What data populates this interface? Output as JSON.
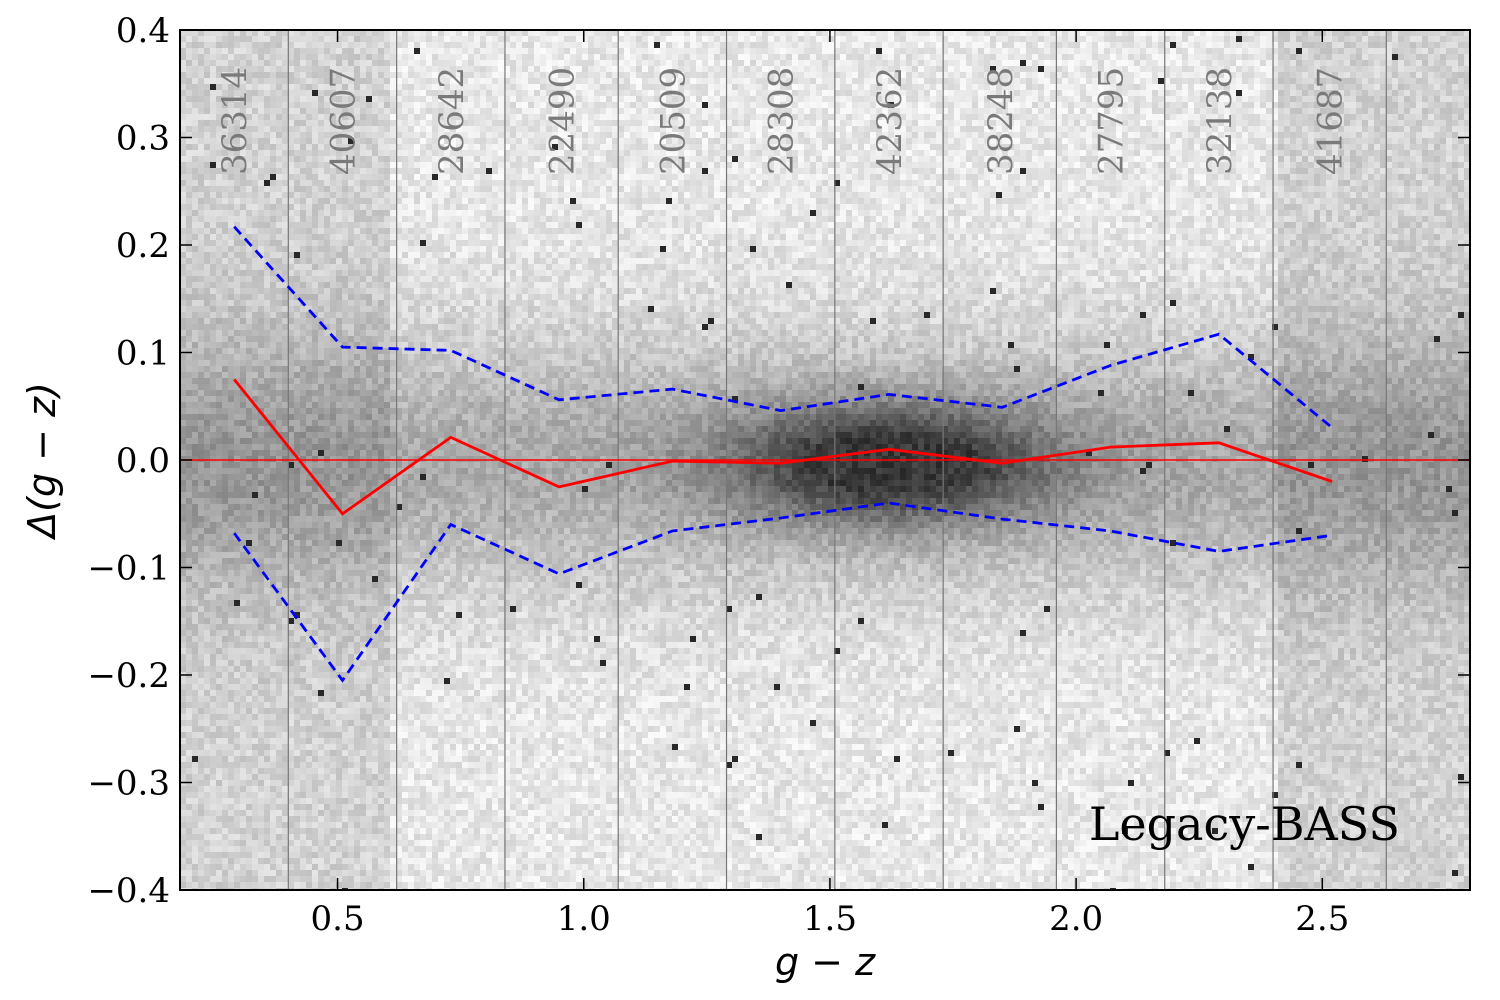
{
  "chart_data": {
    "type": "line",
    "xlabel": "g − z",
    "ylabel": "Δ(g − z)",
    "xlim": [
      0.18,
      2.8
    ],
    "ylim": [
      -0.4,
      0.4
    ],
    "x_ticks": [
      0.5,
      1.0,
      1.5,
      2.0,
      2.5
    ],
    "x_tick_labels": [
      "0.5",
      "1.0",
      "1.5",
      "2.0",
      "2.5"
    ],
    "y_ticks": [
      -0.4,
      -0.3,
      -0.2,
      -0.1,
      0.0,
      0.1,
      0.2,
      0.3,
      0.4
    ],
    "y_tick_labels": [
      "−0.4",
      "−0.3",
      "−0.2",
      "−0.1",
      "0.0",
      "0.1",
      "0.2",
      "0.3",
      "0.4"
    ],
    "bin_edges": [
      0.18,
      0.4,
      0.62,
      0.84,
      1.07,
      1.29,
      1.51,
      1.73,
      1.96,
      2.18,
      2.4,
      2.63
    ],
    "bin_counts": [
      "36314",
      "40607",
      "28642",
      "22490",
      "20509",
      "28308",
      "42362",
      "38248",
      "27795",
      "32138",
      "41687"
    ],
    "zero_line": 0.0,
    "annotation": "Legacy-BASS",
    "colors": {
      "median": "#ff0000",
      "spread": "#0000ff",
      "zero_line": "#ff0000"
    },
    "background": "2D density histogram (grayscale), densest near g−z ≈ 1.6, Δ ≈ 0",
    "series": [
      {
        "style": "solid",
        "x": [
          0.29,
          0.51,
          0.73,
          0.95,
          1.18,
          1.4,
          1.62,
          1.85,
          2.07,
          2.29,
          2.52
        ],
        "values": [
          0.075,
          -0.05,
          0.021,
          -0.025,
          -0.001,
          -0.003,
          0.01,
          -0.003,
          0.012,
          0.016,
          -0.02
        ]
      },
      {
        "style": "dashed",
        "x": [
          0.29,
          0.51,
          0.73,
          0.95,
          1.18,
          1.4,
          1.62,
          1.85,
          2.07,
          2.29,
          2.52
        ],
        "values": [
          0.217,
          0.105,
          0.102,
          0.056,
          0.066,
          0.046,
          0.061,
          0.049,
          0.088,
          0.117,
          0.03
        ]
      },
      {
        "style": "dashed",
        "x": [
          0.29,
          0.51,
          0.73,
          0.95,
          1.18,
          1.4,
          1.62,
          1.85,
          2.07,
          2.29,
          2.52
        ],
        "values": [
          -0.068,
          -0.205,
          -0.06,
          -0.106,
          -0.066,
          -0.054,
          -0.04,
          -0.055,
          -0.066,
          -0.085,
          -0.07
        ]
      }
    ]
  }
}
